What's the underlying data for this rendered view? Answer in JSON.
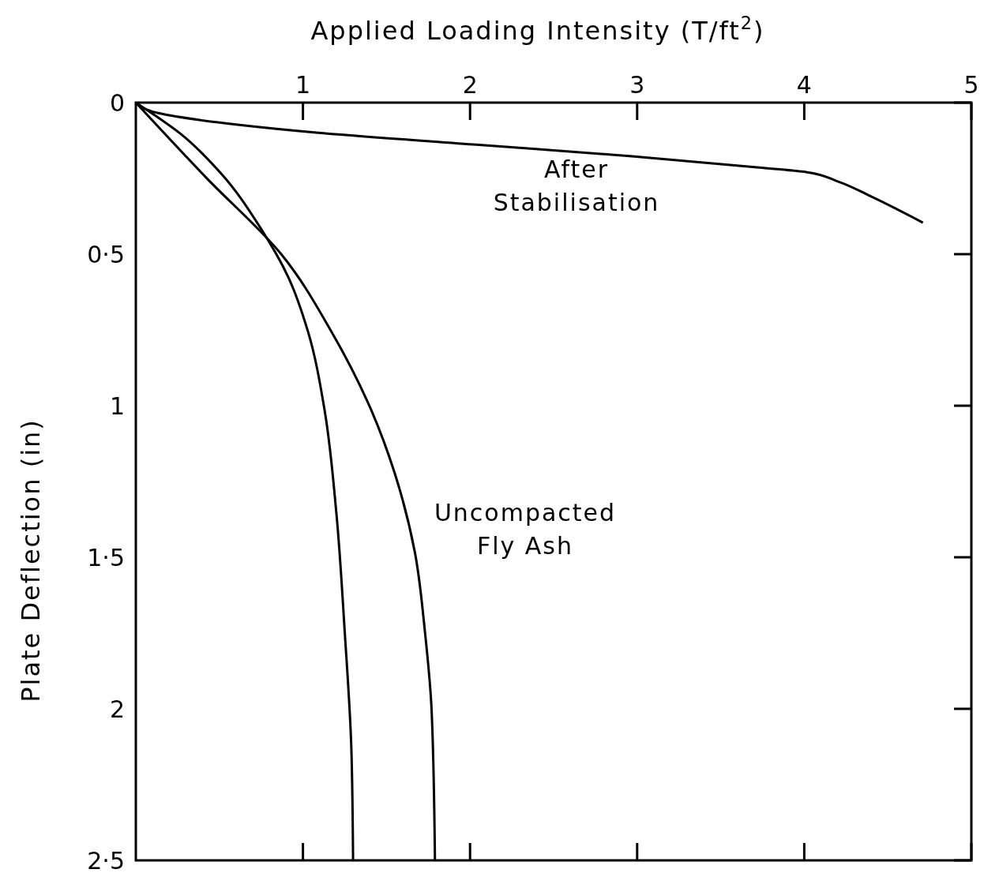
{
  "chart_data": {
    "type": "line",
    "xlabel": "Applied Loading Intensity (T/ft$^{2}$)",
    "ylabel": "Plate Deflection (in)",
    "xlim": [
      0,
      5
    ],
    "ylim": [
      2.5,
      0
    ],
    "xticks": [
      1,
      2,
      3,
      4,
      5
    ],
    "yticks": [
      0,
      {
        "value": 0.5,
        "label": "0·5"
      },
      1,
      {
        "value": 1.5,
        "label": "1·5"
      },
      2,
      {
        "value": 2.5,
        "label": "2·5"
      }
    ],
    "series": [
      {
        "color": "#000000",
        "x": [
          0,
          0.13,
          0.61,
          1.08,
          2.02,
          2.97,
          3.73,
          4.01,
          4.2,
          4.39,
          4.71
        ],
        "values": [
          0,
          0.034,
          0.073,
          0.099,
          0.138,
          0.177,
          0.214,
          0.229,
          0.26,
          0.307,
          0.396
        ]
      },
      {
        "color": "#000000",
        "x": [
          0,
          0.42,
          0.87,
          1.17,
          1.41,
          1.55,
          1.67,
          1.73,
          1.77,
          1.79
        ],
        "values": [
          0,
          0.247,
          0.5,
          0.755,
          1.016,
          1.224,
          1.484,
          1.745,
          2.005,
          2.5
        ]
      },
      {
        "color": "#000000",
        "x": [
          0,
          0.27,
          0.51,
          0.75,
          0.91,
          1.03,
          1.13,
          1.2,
          1.25,
          1.29,
          1.3
        ],
        "values": [
          0,
          0.104,
          0.234,
          0.417,
          0.573,
          0.755,
          1.016,
          1.354,
          1.745,
          2.135,
          2.5
        ]
      }
    ],
    "annotations": [
      "After\nStabilisation",
      "Uncompacted\nFly Ash"
    ]
  }
}
